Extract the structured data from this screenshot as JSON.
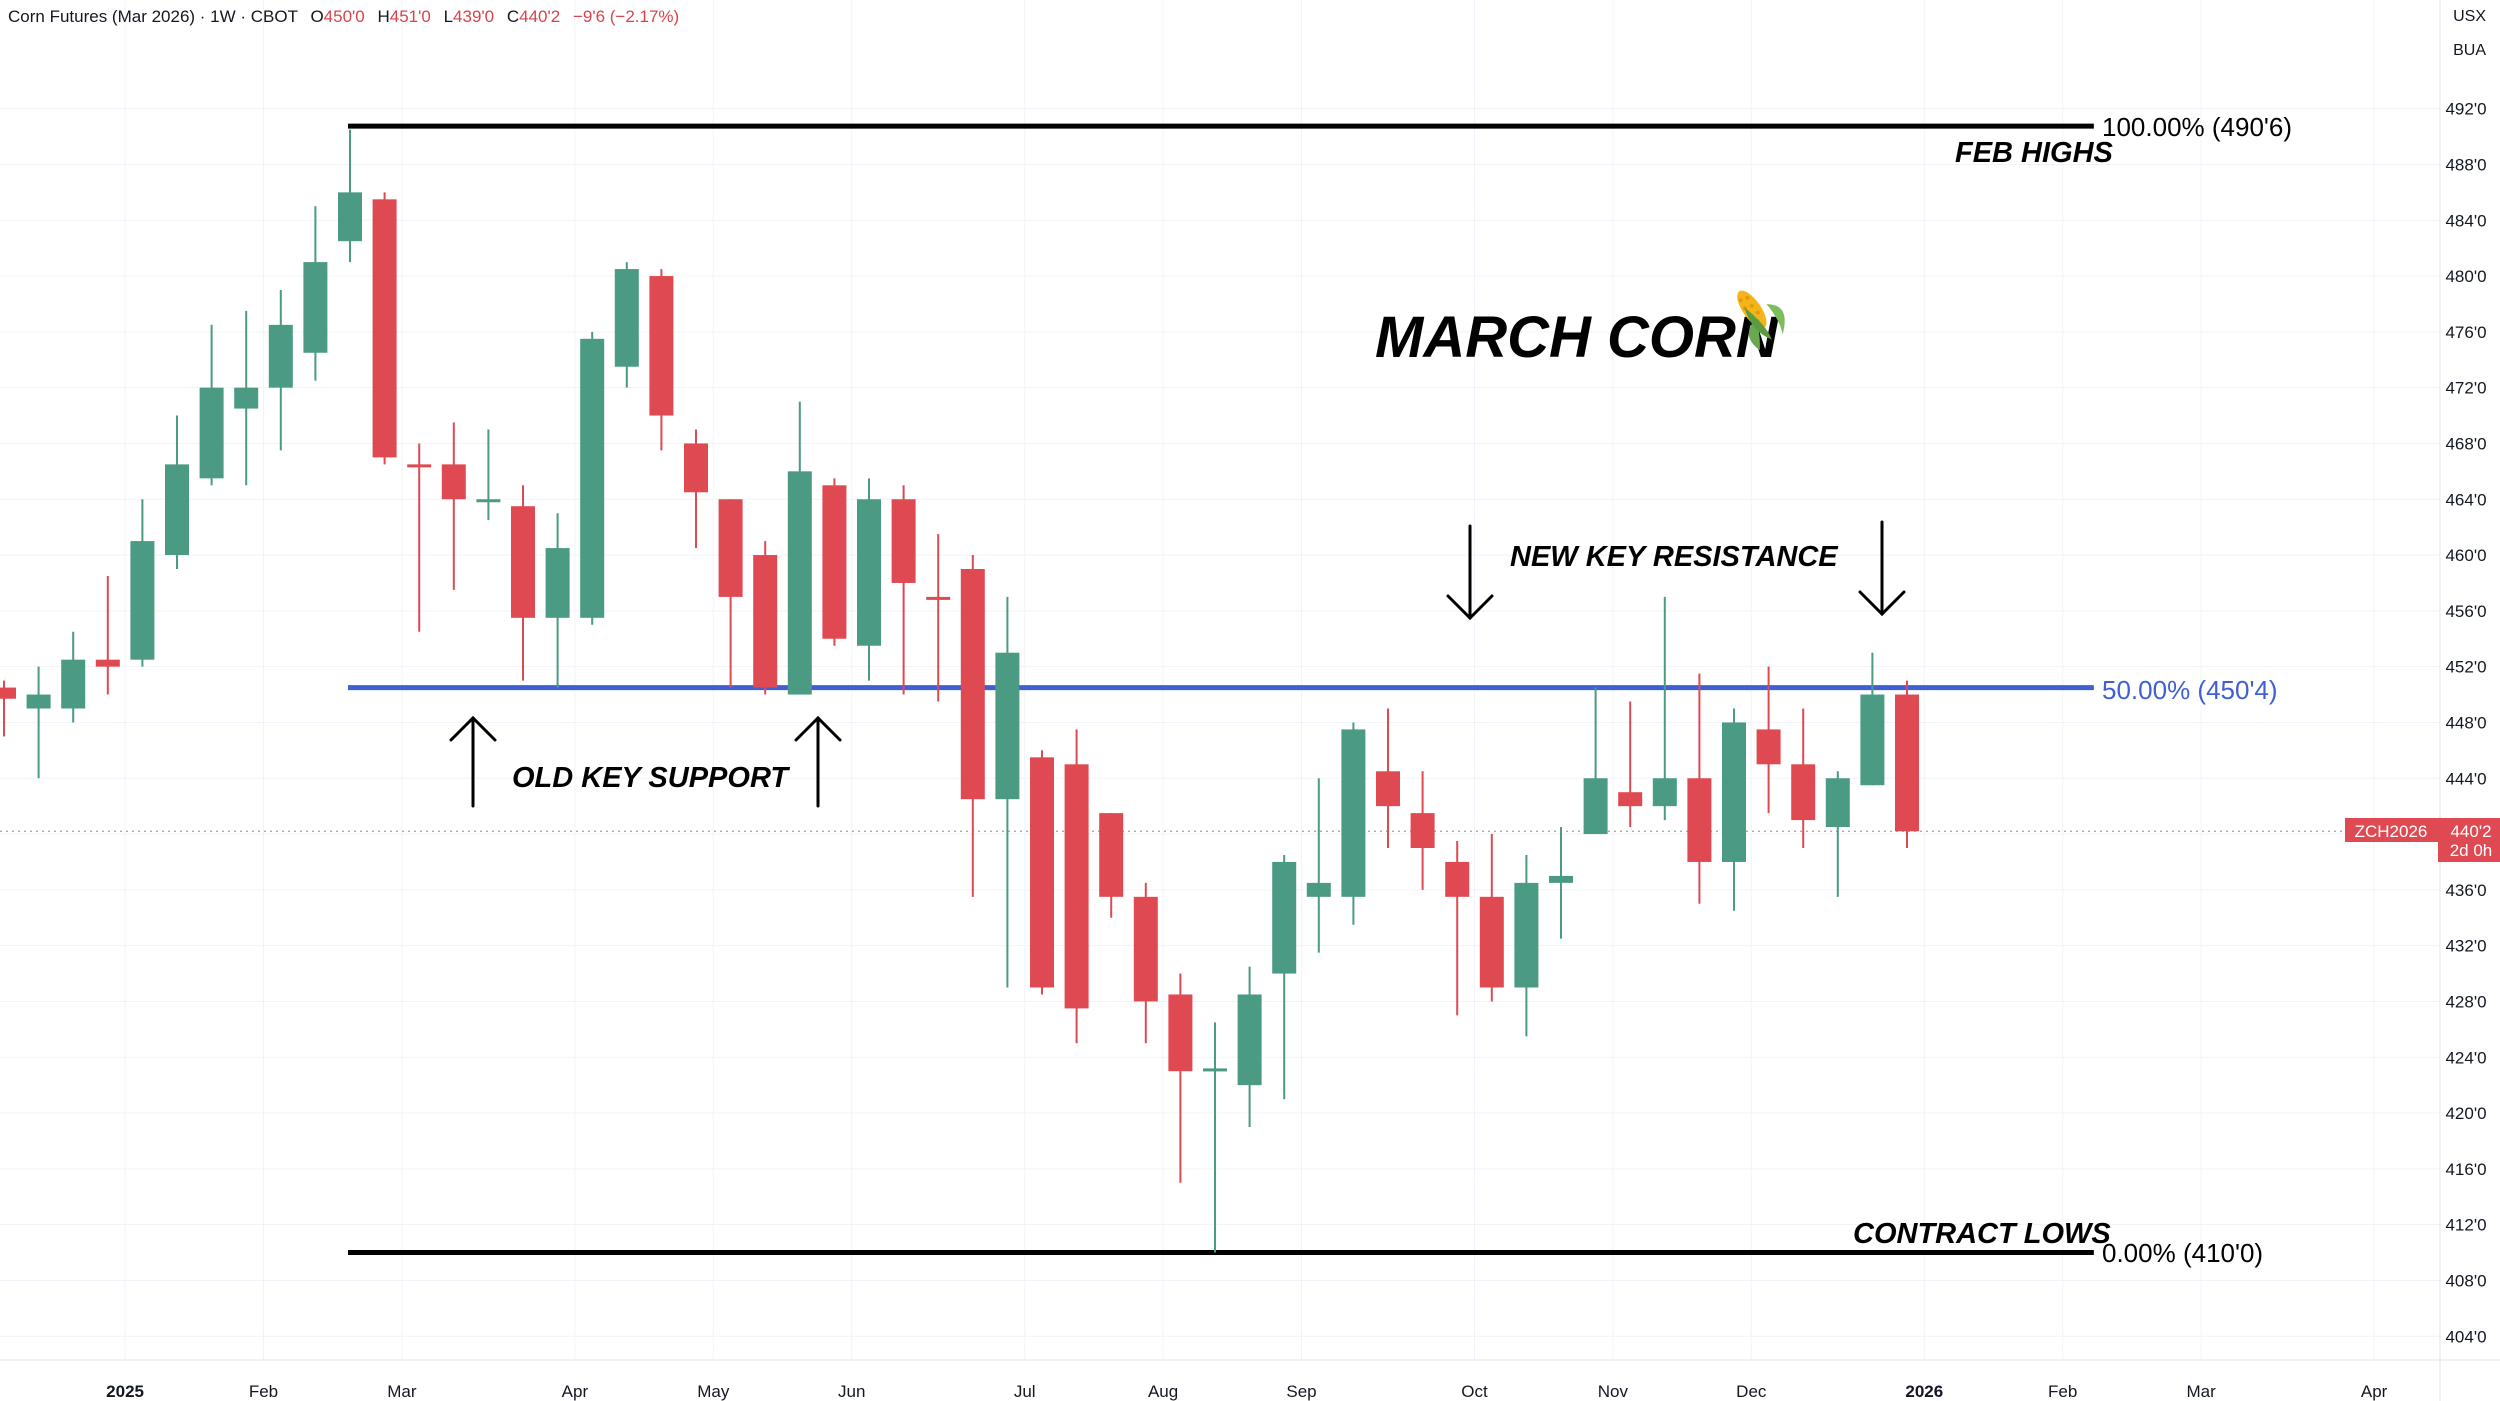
{
  "header": {
    "symbol": "Corn Futures (Mar 2026) · 1W · CBOT",
    "o_label": "O",
    "o_value": "450'0",
    "h_label": "H",
    "h_value": "451'0",
    "l_label": "L",
    "l_value": "439'0",
    "c_label": "C",
    "c_value": "440'2",
    "change": "−9'6 (−2.17%)"
  },
  "units": {
    "currency": "USX",
    "unit": "BUA"
  },
  "price_tag": {
    "ticker": "ZCH2026",
    "price": "440'2",
    "countdown": "2d 0h"
  },
  "colors": {
    "up": "#4a9a84",
    "down": "#df4a52",
    "fib_mid": "#3f5fd4",
    "fib_edge": "#000000",
    "grid": "#f0f3fa"
  },
  "chart_data": {
    "type": "candlestick",
    "title": "MARCH CORN",
    "title_icon": "corn-icon",
    "interval": "1W",
    "ylim": [
      401.5,
      494.5
    ],
    "y_ticks": [
      "404'0",
      "408'0",
      "412'0",
      "416'0",
      "420'0",
      "424'0",
      "428'0",
      "432'0",
      "436'0",
      "440'0",
      "444'0",
      "448'0",
      "452'0",
      "456'0",
      "460'0",
      "464'0",
      "468'0",
      "472'0",
      "476'0",
      "480'0",
      "484'0",
      "488'0",
      "492'0"
    ],
    "x_ticks": [
      {
        "label": "2025",
        "week": 3.5,
        "bold": true
      },
      {
        "label": "Feb",
        "week": 7.5
      },
      {
        "label": "Mar",
        "week": 11.5
      },
      {
        "label": "Apr",
        "week": 16.5
      },
      {
        "label": "May",
        "week": 20.5
      },
      {
        "label": "Jun",
        "week": 24.5
      },
      {
        "label": "Jul",
        "week": 29.5
      },
      {
        "label": "Aug",
        "week": 33.5
      },
      {
        "label": "Sep",
        "week": 37.5
      },
      {
        "label": "Oct",
        "week": 42.5
      },
      {
        "label": "Nov",
        "week": 46.5
      },
      {
        "label": "Dec",
        "week": 50.5
      },
      {
        "label": "2026",
        "week": 55.5,
        "bold": true
      },
      {
        "label": "Feb",
        "week": 59.5
      },
      {
        "label": "Mar",
        "week": 63.5
      },
      {
        "label": "Apr",
        "week": 68.5
      }
    ],
    "candles": [
      [
        450.5,
        449.7,
        451.0,
        447.0
      ],
      [
        449.0,
        450.0,
        452.0,
        444.0
      ],
      [
        449.0,
        452.5,
        454.5,
        448.0
      ],
      [
        452.5,
        452.0,
        458.5,
        450.0
      ],
      [
        452.5,
        461.0,
        464.0,
        452.0
      ],
      [
        460.0,
        466.5,
        470.0,
        459.0
      ],
      [
        465.5,
        472.0,
        476.5,
        465.0
      ],
      [
        470.5,
        472.0,
        477.5,
        465.0
      ],
      [
        472.0,
        476.5,
        479.0,
        467.5
      ],
      [
        474.5,
        481.0,
        485.0,
        472.5
      ],
      [
        482.5,
        486.0,
        490.5,
        481.0
      ],
      [
        485.5,
        467.0,
        486.0,
        466.5
      ],
      [
        466.5,
        466.3,
        468.0,
        454.5
      ],
      [
        466.5,
        464.0,
        469.5,
        457.5
      ],
      [
        464.0,
        464.0,
        469.0,
        462.5
      ],
      [
        463.5,
        455.5,
        465.0,
        451.0
      ],
      [
        455.5,
        460.5,
        463.0,
        450.5
      ],
      [
        455.5,
        475.5,
        476.0,
        455.0
      ],
      [
        473.5,
        480.5,
        481.0,
        472.0
      ],
      [
        480.0,
        470.0,
        480.5,
        467.5
      ],
      [
        468.0,
        464.5,
        469.0,
        460.5
      ],
      [
        464.0,
        457.0,
        464.0,
        450.5
      ],
      [
        460.0,
        450.5,
        461.0,
        450.0
      ],
      [
        450.0,
        466.0,
        471.0,
        450.0
      ],
      [
        465.0,
        454.0,
        465.5,
        453.5
      ],
      [
        453.5,
        464.0,
        465.5,
        451.0
      ],
      [
        464.0,
        458.0,
        465.0,
        450.0
      ],
      [
        457.0,
        456.8,
        461.5,
        449.5
      ],
      [
        459.0,
        442.5,
        460.0,
        435.5
      ],
      [
        442.5,
        453.0,
        457.0,
        429.0
      ],
      [
        445.5,
        429.0,
        446.0,
        428.5
      ],
      [
        445.0,
        427.5,
        447.5,
        425.0
      ],
      [
        441.5,
        435.5,
        441.5,
        434.0
      ],
      [
        435.5,
        428.0,
        436.5,
        425.0
      ],
      [
        428.5,
        423.0,
        430.0,
        415.0
      ],
      [
        423.0,
        423.2,
        426.5,
        410.0
      ],
      [
        422.0,
        428.5,
        430.5,
        419.0
      ],
      [
        430.0,
        438.0,
        438.5,
        421.0
      ],
      [
        435.5,
        436.5,
        444.0,
        431.5
      ],
      [
        435.5,
        447.5,
        448.0,
        433.5
      ],
      [
        444.5,
        442.0,
        449.0,
        439.0
      ],
      [
        441.5,
        439.0,
        444.5,
        436.0
      ],
      [
        438.0,
        435.5,
        439.5,
        427.0
      ],
      [
        435.5,
        429.0,
        440.0,
        428.0
      ],
      [
        429.0,
        436.5,
        438.5,
        425.5
      ],
      [
        436.5,
        437.0,
        440.5,
        432.5
      ],
      [
        440.0,
        444.0,
        450.5,
        440.0
      ],
      [
        443.0,
        442.0,
        449.5,
        440.5
      ],
      [
        442.0,
        444.0,
        457.0,
        441.0
      ],
      [
        444.0,
        438.0,
        451.5,
        435.0
      ],
      [
        438.0,
        448.0,
        449.0,
        434.5
      ],
      [
        447.5,
        445.0,
        452.0,
        441.5
      ],
      [
        445.0,
        441.0,
        449.0,
        439.0
      ],
      [
        440.5,
        444.0,
        444.5,
        435.5
      ],
      [
        443.5,
        450.0,
        453.0,
        443.5
      ],
      [
        450.0,
        440.2,
        451.0,
        439.0
      ]
    ],
    "price_line": 440.2,
    "fib_levels": [
      {
        "level": "100.00%",
        "price": 490.75,
        "label": "100.00% (490'6)",
        "color": "#000000"
      },
      {
        "level": "50.00%",
        "price": 450.5,
        "label": "50.00% (450'4)",
        "color": "#3f5fd4"
      },
      {
        "level": "0.00%",
        "price": 410.0,
        "label": "0.00% (410'0)",
        "color": "#000000"
      }
    ],
    "fib_start_week": 10,
    "fib_end_week": 60.4,
    "annotations": [
      {
        "text": "FEB HIGHS"
      },
      {
        "text": "NEW KEY RESISTANCE"
      },
      {
        "text": "OLD KEY SUPPORT"
      },
      {
        "text": "CONTRACT LOWS"
      }
    ]
  }
}
